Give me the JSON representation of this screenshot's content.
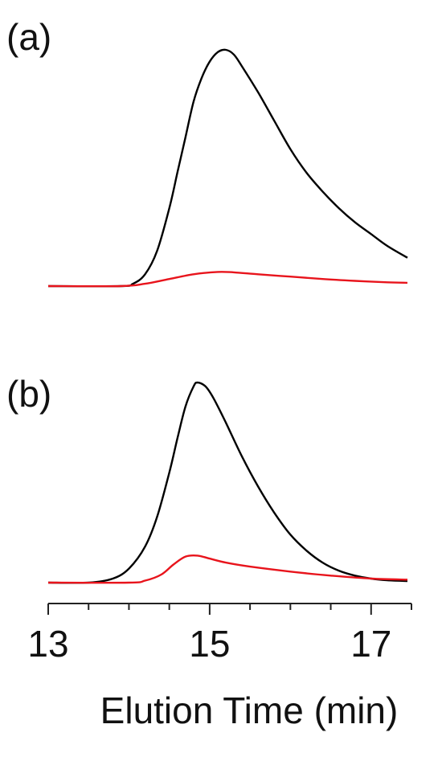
{
  "chart_data": [
    {
      "type": "line",
      "panel_label": "(a)",
      "xlim": [
        13,
        17.5
      ],
      "y_axis_shown": false,
      "colors": {
        "black_trace": "#000000",
        "red_trace": "#e8141c"
      },
      "series": [
        {
          "color": "#000000",
          "points": [
            [
              13.0,
              0.0
            ],
            [
              13.9,
              0.0
            ],
            [
              14.05,
              0.01
            ],
            [
              14.2,
              0.05
            ],
            [
              14.35,
              0.15
            ],
            [
              14.5,
              0.33
            ],
            [
              14.6,
              0.48
            ],
            [
              14.7,
              0.63
            ],
            [
              14.8,
              0.78
            ],
            [
              14.9,
              0.88
            ],
            [
              15.0,
              0.95
            ],
            [
              15.1,
              0.99
            ],
            [
              15.2,
              1.0
            ],
            [
              15.3,
              0.98
            ],
            [
              15.4,
              0.93
            ],
            [
              15.6,
              0.82
            ],
            [
              15.8,
              0.7
            ],
            [
              16.0,
              0.58
            ],
            [
              16.2,
              0.48
            ],
            [
              16.4,
              0.4
            ],
            [
              16.6,
              0.33
            ],
            [
              16.8,
              0.27
            ],
            [
              17.0,
              0.22
            ],
            [
              17.2,
              0.17
            ],
            [
              17.45,
              0.12
            ]
          ]
        },
        {
          "color": "#e8141c",
          "points": [
            [
              13.0,
              0.0
            ],
            [
              13.9,
              0.0
            ],
            [
              14.2,
              0.01
            ],
            [
              14.5,
              0.03
            ],
            [
              14.8,
              0.05
            ],
            [
              15.1,
              0.06
            ],
            [
              15.3,
              0.058
            ],
            [
              15.6,
              0.05
            ],
            [
              16.0,
              0.04
            ],
            [
              16.4,
              0.03
            ],
            [
              16.8,
              0.022
            ],
            [
              17.2,
              0.016
            ],
            [
              17.45,
              0.014
            ]
          ]
        }
      ]
    },
    {
      "type": "line",
      "panel_label": "(b)",
      "xlim": [
        13,
        17.5
      ],
      "xlabel": "Elution Time (min)",
      "xticks": [
        13,
        15,
        17
      ],
      "xticks_minor": [
        13.5,
        14,
        14.5,
        15.5,
        16,
        16.5,
        17.5
      ],
      "y_axis_shown": false,
      "series": [
        {
          "color": "#000000",
          "points": [
            [
              13.0,
              0.0
            ],
            [
              13.5,
              0.0
            ],
            [
              13.8,
              0.02
            ],
            [
              14.0,
              0.07
            ],
            [
              14.2,
              0.18
            ],
            [
              14.35,
              0.33
            ],
            [
              14.5,
              0.55
            ],
            [
              14.6,
              0.72
            ],
            [
              14.7,
              0.88
            ],
            [
              14.8,
              0.98
            ],
            [
              14.85,
              1.0
            ],
            [
              14.95,
              0.98
            ],
            [
              15.05,
              0.92
            ],
            [
              15.2,
              0.8
            ],
            [
              15.4,
              0.63
            ],
            [
              15.6,
              0.48
            ],
            [
              15.8,
              0.35
            ],
            [
              16.0,
              0.24
            ],
            [
              16.2,
              0.16
            ],
            [
              16.4,
              0.1
            ],
            [
              16.6,
              0.06
            ],
            [
              16.8,
              0.035
            ],
            [
              17.0,
              0.02
            ],
            [
              17.2,
              0.012
            ],
            [
              17.45,
              0.008
            ]
          ]
        },
        {
          "color": "#e8141c",
          "points": [
            [
              13.0,
              0.0
            ],
            [
              14.0,
              0.0
            ],
            [
              14.2,
              0.01
            ],
            [
              14.4,
              0.04
            ],
            [
              14.55,
              0.09
            ],
            [
              14.7,
              0.13
            ],
            [
              14.85,
              0.135
            ],
            [
              15.0,
              0.12
            ],
            [
              15.2,
              0.1
            ],
            [
              15.5,
              0.08
            ],
            [
              16.0,
              0.055
            ],
            [
              16.5,
              0.035
            ],
            [
              17.0,
              0.02
            ],
            [
              17.45,
              0.015
            ]
          ]
        }
      ]
    }
  ]
}
